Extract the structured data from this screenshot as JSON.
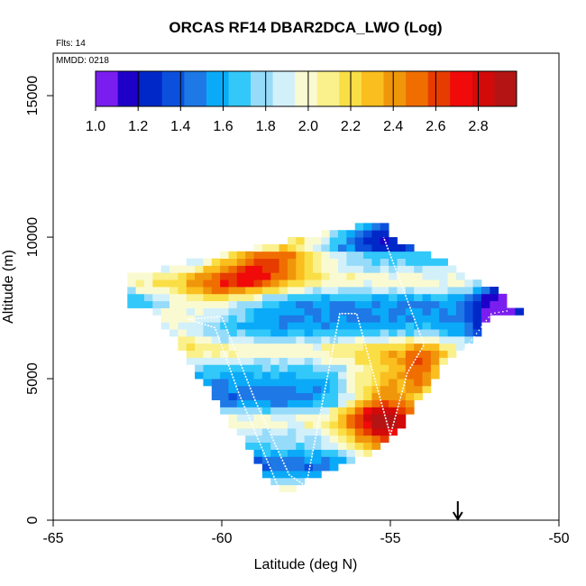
{
  "chart_data": {
    "type": "heatmap",
    "title": "ORCAS RF14 DBAR2DCA_LWO (Log)",
    "xlabel": "Latitude (deg N)",
    "ylabel": "Altitude (m)",
    "xlim": [
      -65,
      -50
    ],
    "ylim": [
      0,
      16500
    ],
    "x_ticks": [
      "-65",
      "-60",
      "-55",
      "-50"
    ],
    "y_ticks": [
      "0",
      "5000",
      "10000",
      "15000"
    ],
    "flights_label": "Flts: 14",
    "date_label": "MMDD: 0218",
    "colorbar": {
      "range": [
        1.0,
        2.98
      ],
      "ticks": [
        "1.0",
        "1.2",
        "1.4",
        "1.6",
        "1.8",
        "2.0",
        "2.2",
        "2.4",
        "2.6",
        "2.8"
      ],
      "colors": [
        "#7a1ef0",
        "#1e00c8",
        "#0028c8",
        "#0a50dc",
        "#1e78e6",
        "#0aaaf8",
        "#32c8fa",
        "#96dcfa",
        "#d2f0fa",
        "#fafad2",
        "#faf08c",
        "#fade46",
        "#fabe1e",
        "#f0960a",
        "#f06e00",
        "#e63c00",
        "#f00a0a",
        "#d20a0a",
        "#b41414"
      ]
    },
    "arrow_marker_lat": -53.0,
    "flight_track": [
      [
        -58.3,
        1100
      ],
      [
        -59.5,
        4500
      ],
      [
        -60.2,
        6800
      ],
      [
        -61.0,
        7100
      ],
      [
        -60.0,
        7200
      ],
      [
        -59.0,
        4200
      ],
      [
        -58.0,
        1600
      ],
      [
        -57.5,
        1200
      ],
      [
        -56.5,
        7300
      ],
      [
        -56.0,
        7300
      ],
      [
        -55.0,
        3000
      ],
      [
        -54.5,
        5200
      ],
      [
        -54.0,
        6200
      ],
      [
        -55.2,
        10000
      ]
    ],
    "dotted_track": [
      [
        -53.5,
        5000
      ],
      [
        -52.5,
        6500
      ],
      [
        -52.0,
        7300
      ],
      [
        -51.5,
        7400
      ]
    ]
  }
}
